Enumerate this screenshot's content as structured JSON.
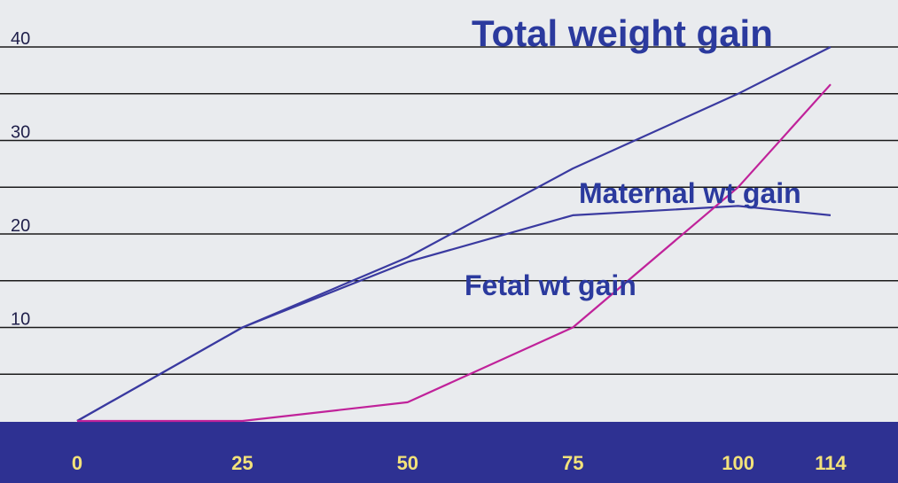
{
  "chart_data": {
    "type": "line",
    "x": [
      0,
      25,
      50,
      75,
      100,
      114
    ],
    "x_tick_labels": [
      "0",
      "25",
      "50",
      "75",
      "100",
      "114"
    ],
    "y_tick_values": [
      10,
      20,
      30,
      40
    ],
    "y_tick_labels": [
      "10",
      "20",
      "30",
      "40"
    ],
    "ylim": [
      0,
      40
    ],
    "grid": true,
    "series": [
      {
        "name": "Total weight gain",
        "color": "#3a3aa0",
        "values": [
          0,
          10,
          17.5,
          27,
          35,
          40
        ]
      },
      {
        "name": "Maternal wt gain",
        "color": "#3a3aa0",
        "values": [
          0,
          10,
          17,
          22,
          23,
          22
        ]
      },
      {
        "name": "Fetal wt gain",
        "color": "#c0229a",
        "values": [
          0,
          0,
          2,
          10,
          25,
          36
        ]
      }
    ],
    "colors": {
      "background": "#e9ebee",
      "x_axis_band": "#2e3192",
      "x_tick_text": "#f3e27a",
      "series_label": "#2b3a9e"
    }
  }
}
